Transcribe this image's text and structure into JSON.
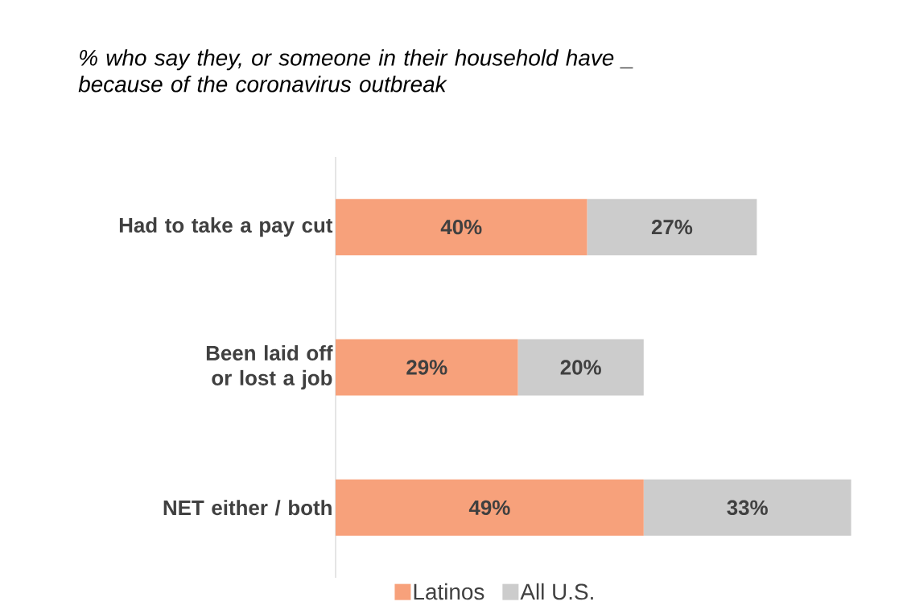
{
  "chart_data": {
    "type": "bar",
    "orientation": "horizontal",
    "stacked": true,
    "title": "% who say they, or someone in their household have _ because of the coronavirus outbreak",
    "categories": [
      "Had to take a pay cut",
      "Been laid off or lost a job",
      "NET either / both"
    ],
    "series": [
      {
        "name": "Latinos",
        "color": "#f7a17b",
        "values": [
          40,
          29,
          49
        ],
        "value_labels": [
          "40%",
          "29%",
          "49%"
        ]
      },
      {
        "name": "All U.S.",
        "color": "#cccccc",
        "values": [
          27,
          20,
          33
        ],
        "value_labels": [
          "27%",
          "20%",
          "33%"
        ]
      }
    ],
    "data_labels": true,
    "legend": "bottom"
  }
}
